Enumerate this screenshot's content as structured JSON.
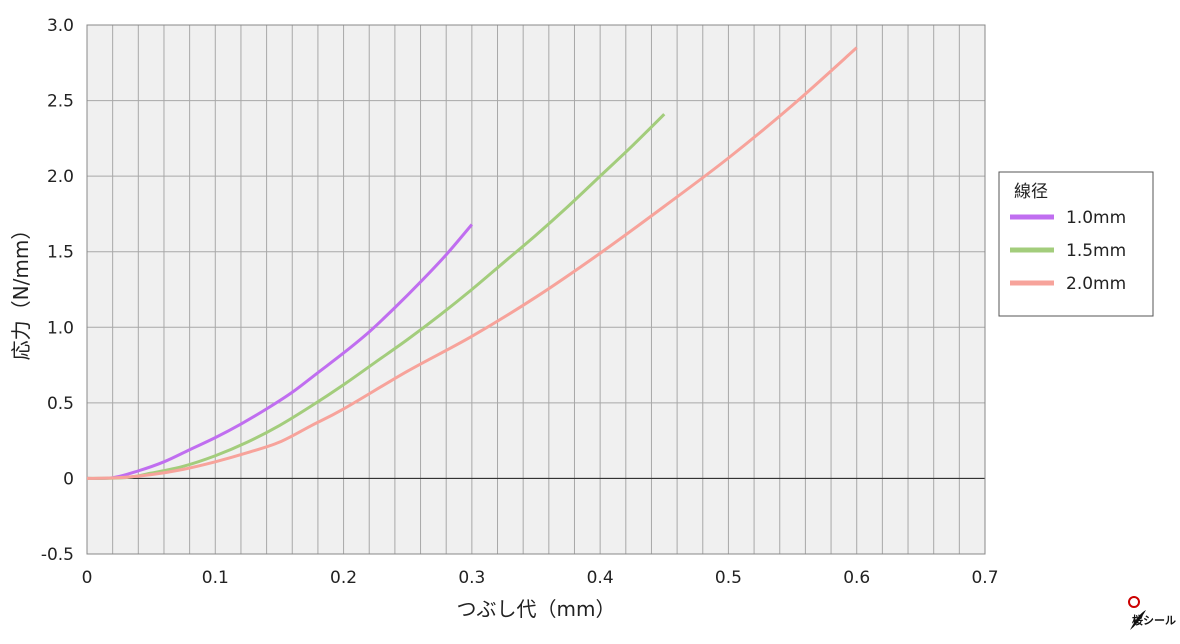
{
  "chart_data": {
    "type": "line",
    "xlabel": "つぶし代（mm）",
    "ylabel": "応力（N/mm）",
    "xlim": [
      0,
      0.7
    ],
    "ylim": [
      -0.5,
      3.0
    ],
    "x_ticks": [
      "0",
      "0.1",
      "0.2",
      "0.3",
      "0.4",
      "0.5",
      "0.6",
      "0.7"
    ],
    "y_ticks": [
      "-0.5",
      "0",
      "0.5",
      "1.0",
      "1.5",
      "2.0",
      "2.5",
      "3.0"
    ],
    "grid": true,
    "legend": {
      "title": "線径",
      "position": "right"
    },
    "series": [
      {
        "name": "1.0mm",
        "color": "#c06ef0",
        "x": [
          0,
          0.02,
          0.04,
          0.06,
          0.08,
          0.1,
          0.12,
          0.14,
          0.16,
          0.18,
          0.2,
          0.22,
          0.24,
          0.26,
          0.28,
          0.3
        ],
        "y": [
          0,
          0.005,
          0.05,
          0.11,
          0.19,
          0.27,
          0.36,
          0.46,
          0.57,
          0.7,
          0.83,
          0.97,
          1.13,
          1.3,
          1.48,
          1.68
        ]
      },
      {
        "name": "1.5mm",
        "color": "#a3cd7c",
        "x": [
          0,
          0.03,
          0.05,
          0.075,
          0.1,
          0.125,
          0.15,
          0.175,
          0.2,
          0.225,
          0.25,
          0.275,
          0.3,
          0.325,
          0.35,
          0.375,
          0.4,
          0.425,
          0.45
        ],
        "y": [
          0,
          0.005,
          0.035,
          0.08,
          0.15,
          0.24,
          0.35,
          0.48,
          0.62,
          0.77,
          0.92,
          1.08,
          1.25,
          1.43,
          1.61,
          1.8,
          2.0,
          2.2,
          2.41
        ]
      },
      {
        "name": "2.0mm",
        "color": "#f7a39b",
        "x": [
          0,
          0.025,
          0.05,
          0.075,
          0.1,
          0.125,
          0.15,
          0.175,
          0.2,
          0.25,
          0.3,
          0.35,
          0.4,
          0.45,
          0.5,
          0.55,
          0.6
        ],
        "y": [
          0,
          0.005,
          0.025,
          0.06,
          0.11,
          0.17,
          0.24,
          0.35,
          0.46,
          0.71,
          0.94,
          1.2,
          1.49,
          1.8,
          2.12,
          2.47,
          2.85
        ]
      }
    ]
  },
  "logo": {
    "text": "桜シール"
  }
}
